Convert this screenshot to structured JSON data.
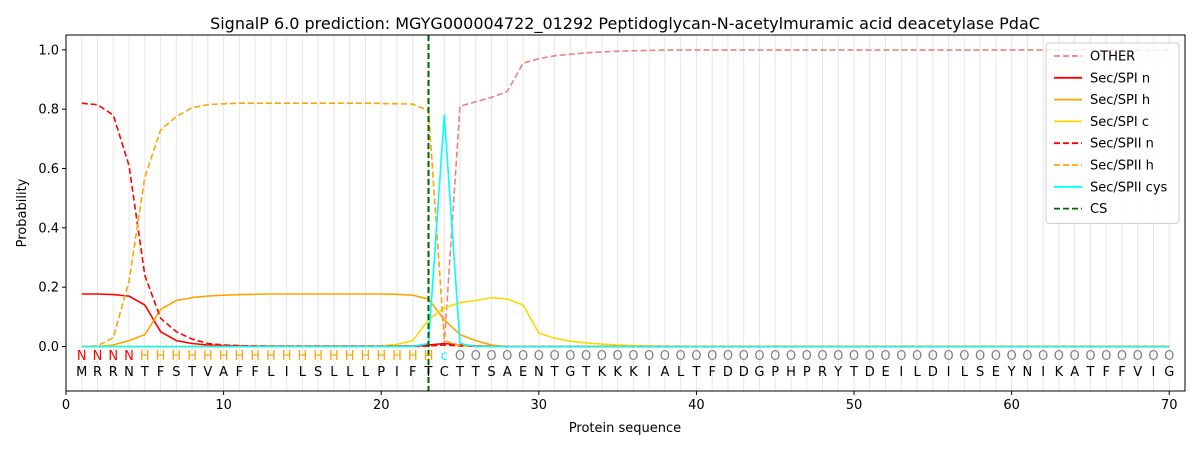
{
  "chart_data": {
    "type": "line",
    "title": "SignalP 6.0 prediction: MGYG000004722_01292 Peptidoglycan-N-acetylmuramic acid deacetylase PdaC",
    "xlabel": "Protein sequence",
    "ylabel": "Probability",
    "xlim": [
      0,
      71
    ],
    "ylim": [
      -0.15,
      1.05
    ],
    "xticks": [
      0,
      10,
      20,
      30,
      40,
      50,
      60,
      70
    ],
    "yticks": [
      0.0,
      0.2,
      0.4,
      0.6,
      0.8,
      1.0
    ],
    "legend_position": "top-right",
    "grid": "vertical lines at each residue",
    "sequence": [
      "M",
      "R",
      "R",
      "N",
      "T",
      "F",
      "S",
      "T",
      "V",
      "A",
      "F",
      "F",
      "L",
      "I",
      "L",
      "S",
      "L",
      "L",
      "L",
      "P",
      "I",
      "F",
      "T",
      "C",
      "T",
      "T",
      "S",
      "A",
      "E",
      "N",
      "T",
      "G",
      "T",
      "K",
      "K",
      "K",
      "I",
      "A",
      "L",
      "T",
      "F",
      "D",
      "D",
      "G",
      "P",
      "H",
      "P",
      "R",
      "Y",
      "T",
      "D",
      "E",
      "I",
      "L",
      "D",
      "I",
      "L",
      "S",
      "E",
      "Y",
      "N",
      "I",
      "K",
      "A",
      "T",
      "F",
      "F",
      "V",
      "I",
      "G"
    ],
    "labels": [
      "N",
      "N",
      "N",
      "N",
      "H",
      "H",
      "H",
      "H",
      "H",
      "H",
      "H",
      "H",
      "H",
      "H",
      "H",
      "H",
      "H",
      "H",
      "H",
      "H",
      "H",
      "H",
      "H",
      "c",
      "O",
      "O",
      "O",
      "O",
      "O",
      "O",
      "O",
      "O",
      "O",
      "O",
      "O",
      "O",
      "O",
      "O",
      "O",
      "O",
      "O",
      "O",
      "O",
      "O",
      "O",
      "O",
      "O",
      "O",
      "O",
      "O",
      "O",
      "O",
      "O",
      "O",
      "O",
      "O",
      "O",
      "O",
      "O",
      "O",
      "O",
      "O",
      "O",
      "O",
      "O",
      "O",
      "O",
      "O",
      "O",
      "O"
    ],
    "label_colors": {
      "N": "#ff0000",
      "H": "#ffa500",
      "c": "#00ffff",
      "O": "#808080"
    },
    "cs_position": 23,
    "series": [
      {
        "name": "OTHER",
        "color": "#f08080",
        "dash": "dashed",
        "values": [
          0.0,
          0.0,
          0.0,
          0.0,
          0.0,
          0.0,
          0.0,
          0.0,
          0.0,
          0.0,
          0.0,
          0.0,
          0.0,
          0.0,
          0.0,
          0.0,
          0.0,
          0.0,
          0.0,
          0.0,
          0.0,
          0.0,
          0.0,
          0.01,
          0.81,
          0.825,
          0.84,
          0.86,
          0.955,
          0.97,
          0.98,
          0.985,
          0.99,
          0.993,
          0.995,
          0.997,
          0.998,
          0.999,
          0.999,
          0.999,
          0.999,
          0.999,
          0.999,
          0.999,
          0.999,
          0.999,
          0.999,
          0.999,
          0.999,
          0.999,
          0.999,
          0.999,
          0.999,
          0.999,
          0.999,
          0.999,
          0.999,
          0.999,
          0.999,
          0.999,
          0.999,
          0.999,
          0.999,
          0.999,
          0.999,
          0.999,
          0.999,
          0.999,
          0.999,
          0.999
        ]
      },
      {
        "name": "Sec/SPI n",
        "color": "#ff0000",
        "dash": "solid",
        "values": [
          0.177,
          0.177,
          0.175,
          0.17,
          0.14,
          0.05,
          0.02,
          0.01,
          0.005,
          0.003,
          0.002,
          0.001,
          0.001,
          0.001,
          0.001,
          0.001,
          0.001,
          0.001,
          0.001,
          0.001,
          0.001,
          0.001,
          0.005,
          0.01,
          0.005,
          0.002,
          0.001,
          0.0,
          0.0,
          0.0,
          0.0,
          0.0,
          0.0,
          0.0,
          0.0,
          0.0,
          0.0,
          0.0,
          0.0,
          0.0,
          0.0,
          0.0,
          0.0,
          0.0,
          0.0,
          0.0,
          0.0,
          0.0,
          0.0,
          0.0,
          0.0,
          0.0,
          0.0,
          0.0,
          0.0,
          0.0,
          0.0,
          0.0,
          0.0,
          0.0,
          0.0,
          0.0,
          0.0,
          0.0,
          0.0,
          0.0,
          0.0,
          0.0,
          0.0,
          0.0
        ]
      },
      {
        "name": "Sec/SPI h",
        "color": "#ffa500",
        "dash": "solid",
        "values": [
          0.0,
          0.0,
          0.005,
          0.02,
          0.04,
          0.125,
          0.155,
          0.165,
          0.17,
          0.173,
          0.175,
          0.176,
          0.177,
          0.177,
          0.177,
          0.177,
          0.177,
          0.177,
          0.177,
          0.177,
          0.176,
          0.173,
          0.16,
          0.09,
          0.04,
          0.02,
          0.005,
          0.0,
          0.0,
          0.0,
          0.0,
          0.0,
          0.0,
          0.0,
          0.0,
          0.0,
          0.0,
          0.0,
          0.0,
          0.0,
          0.0,
          0.0,
          0.0,
          0.0,
          0.0,
          0.0,
          0.0,
          0.0,
          0.0,
          0.0,
          0.0,
          0.0,
          0.0,
          0.0,
          0.0,
          0.0,
          0.0,
          0.0,
          0.0,
          0.0,
          0.0,
          0.0,
          0.0,
          0.0,
          0.0,
          0.0,
          0.0,
          0.0,
          0.0,
          0.0
        ]
      },
      {
        "name": "Sec/SPI c",
        "color": "#ffd700",
        "dash": "solid",
        "values": [
          0.0,
          0.0,
          0.0,
          0.0,
          0.0,
          0.0,
          0.0,
          0.0,
          0.0,
          0.0,
          0.0,
          0.0,
          0.0,
          0.0,
          0.0,
          0.0,
          0.0,
          0.0,
          0.0,
          0.002,
          0.007,
          0.02,
          0.09,
          0.13,
          0.148,
          0.155,
          0.165,
          0.16,
          0.14,
          0.045,
          0.028,
          0.018,
          0.012,
          0.008,
          0.005,
          0.003,
          0.002,
          0.001,
          0.001,
          0.0,
          0.0,
          0.0,
          0.0,
          0.0,
          0.0,
          0.0,
          0.0,
          0.0,
          0.0,
          0.0,
          0.0,
          0.0,
          0.0,
          0.0,
          0.0,
          0.0,
          0.0,
          0.0,
          0.0,
          0.0,
          0.0,
          0.0,
          0.0,
          0.0,
          0.0,
          0.0,
          0.0,
          0.0,
          0.0,
          0.0
        ]
      },
      {
        "name": "Sec/SPII n",
        "color": "#ff0000",
        "dash": "dashed",
        "values": [
          0.82,
          0.815,
          0.78,
          0.61,
          0.24,
          0.095,
          0.05,
          0.025,
          0.01,
          0.005,
          0.003,
          0.002,
          0.001,
          0.001,
          0.001,
          0.001,
          0.001,
          0.001,
          0.001,
          0.001,
          0.001,
          0.001,
          0.002,
          0.005,
          0.002,
          0.001,
          0.0,
          0.0,
          0.0,
          0.0,
          0.0,
          0.0,
          0.0,
          0.0,
          0.0,
          0.0,
          0.0,
          0.0,
          0.0,
          0.0,
          0.0,
          0.0,
          0.0,
          0.0,
          0.0,
          0.0,
          0.0,
          0.0,
          0.0,
          0.0,
          0.0,
          0.0,
          0.0,
          0.0,
          0.0,
          0.0,
          0.0,
          0.0,
          0.0,
          0.0,
          0.0,
          0.0,
          0.0,
          0.0,
          0.0,
          0.0,
          0.0,
          0.0,
          0.0,
          0.0
        ]
      },
      {
        "name": "Sec/SPII h",
        "color": "#ffa500",
        "dash": "dashed",
        "values": [
          0.0,
          0.002,
          0.03,
          0.22,
          0.57,
          0.73,
          0.775,
          0.805,
          0.815,
          0.818,
          0.82,
          0.82,
          0.82,
          0.82,
          0.82,
          0.82,
          0.82,
          0.82,
          0.82,
          0.819,
          0.818,
          0.817,
          0.795,
          0.02,
          0.003,
          0.001,
          0.0,
          0.0,
          0.0,
          0.0,
          0.0,
          0.0,
          0.0,
          0.0,
          0.0,
          0.0,
          0.0,
          0.0,
          0.0,
          0.0,
          0.0,
          0.0,
          0.0,
          0.0,
          0.0,
          0.0,
          0.0,
          0.0,
          0.0,
          0.0,
          0.0,
          0.0,
          0.0,
          0.0,
          0.0,
          0.0,
          0.0,
          0.0,
          0.0,
          0.0,
          0.0,
          0.0,
          0.0,
          0.0,
          0.0,
          0.0,
          0.0,
          0.0,
          0.0,
          0.0
        ]
      },
      {
        "name": "Sec/SPII cys",
        "color": "#00ffff",
        "dash": "solid",
        "values": [
          0.0,
          0.0,
          0.0,
          0.0,
          0.0,
          0.0,
          0.0,
          0.0,
          0.0,
          0.0,
          0.0,
          0.0,
          0.0,
          0.0,
          0.0,
          0.0,
          0.0,
          0.0,
          0.0,
          0.0,
          0.0,
          0.0,
          0.01,
          0.78,
          0.01,
          0.0,
          0.0,
          0.0,
          0.0,
          0.0,
          0.0,
          0.0,
          0.0,
          0.0,
          0.0,
          0.0,
          0.0,
          0.0,
          0.0,
          0.0,
          0.0,
          0.0,
          0.0,
          0.0,
          0.0,
          0.0,
          0.0,
          0.0,
          0.0,
          0.0,
          0.0,
          0.0,
          0.0,
          0.0,
          0.0,
          0.0,
          0.0,
          0.0,
          0.0,
          0.0,
          0.0,
          0.0,
          0.0,
          0.0,
          0.0,
          0.0,
          0.0,
          0.0,
          0.0,
          0.0
        ]
      },
      {
        "name": "CS",
        "color": "#006400",
        "dash": "dashed",
        "vertical_at": 23
      }
    ]
  }
}
